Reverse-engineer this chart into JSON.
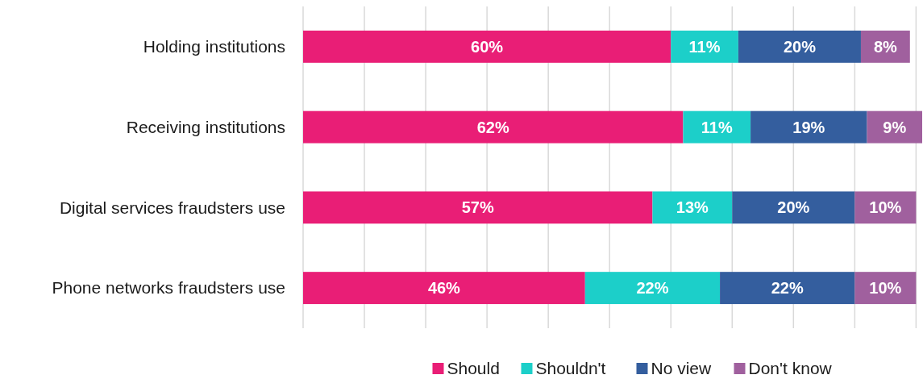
{
  "chart_data": {
    "type": "bar",
    "orientation": "horizontal",
    "stacked": true,
    "categories": [
      "Holding institutions",
      "Receiving institutions",
      "Digital services fraudsters use",
      "Phone networks fraudsters use"
    ],
    "series": [
      {
        "name": "Should",
        "color": "#e91e76",
        "values": [
          60,
          62,
          57,
          46
        ],
        "value_labels": [
          "60%",
          "62%",
          "57%",
          "46%"
        ]
      },
      {
        "name": "Shouldn't",
        "color": "#1ccfc9",
        "values": [
          11,
          11,
          13,
          22
        ],
        "value_labels": [
          "11%",
          "11%",
          "13%",
          "22%"
        ]
      },
      {
        "name": "No view",
        "color": "#345e9e",
        "values": [
          20,
          19,
          20,
          22
        ],
        "value_labels": [
          "20%",
          "19%",
          "20%",
          "22%"
        ]
      },
      {
        "name": "Don't know",
        "color": "#a0609e",
        "values": [
          8,
          9,
          10,
          10
        ],
        "value_labels": [
          "8%",
          "9%",
          "10%",
          "10%"
        ]
      }
    ],
    "grid": "x",
    "tick_labels": "y",
    "legend": "bottom"
  }
}
